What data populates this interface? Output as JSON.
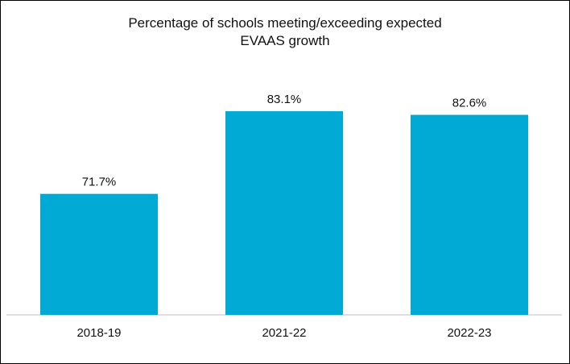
{
  "chart_data": {
    "type": "bar",
    "title_lines": [
      "Percentage of schools meeting/exceeding expected",
      "EVAAS growth"
    ],
    "categories": [
      "2018-19",
      "2021-22",
      "2022-23"
    ],
    "values": [
      71.7,
      83.1,
      82.6
    ],
    "value_labels": [
      "71.7%",
      "83.1%",
      "82.6%"
    ],
    "xlabel": "",
    "ylabel": "",
    "ylim": [
      55,
      86
    ],
    "grid": false,
    "legend": "none",
    "bar_color": "#00AAD4",
    "axis_color": "#BFBFBF"
  }
}
